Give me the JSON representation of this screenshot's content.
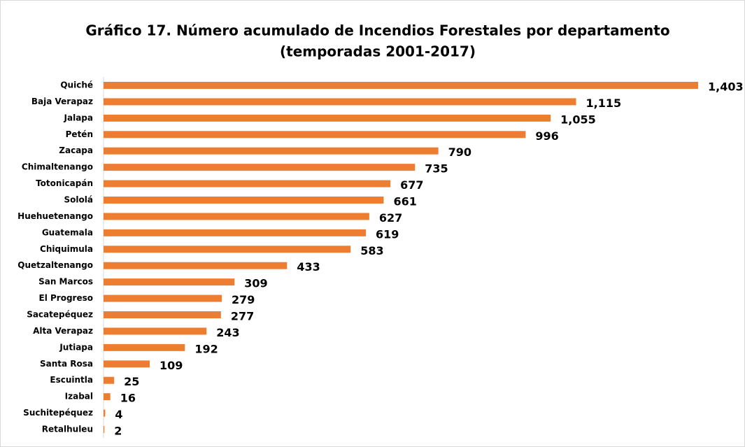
{
  "chart_data": {
    "type": "bar",
    "orientation": "horizontal",
    "title": [
      "Gráfico 17. Número acumulado de Incendios Forestales por departamento",
      "(temporadas 2001-2017)"
    ],
    "categories": [
      "Quiché",
      "Baja Verapaz",
      "Jalapa",
      "Petén",
      "Zacapa",
      "Chimaltenango",
      "Totonicapán",
      "Sololá",
      "Huehuetenango",
      "Guatemala",
      "Chiquimula",
      "Quetzaltenango",
      "San Marcos",
      "El Progreso",
      "Sacatepéquez",
      "Alta Verapaz",
      "Jutiapa",
      "Santa Rosa",
      "Escuintla",
      "Izabal",
      "Suchitepéquez",
      "Retalhuleu"
    ],
    "values": [
      1403,
      1115,
      1055,
      996,
      790,
      735,
      677,
      661,
      627,
      619,
      583,
      433,
      309,
      279,
      277,
      243,
      192,
      109,
      25,
      16,
      4,
      2
    ],
    "value_labels": [
      "1,403",
      "1,115",
      "1,055",
      "996",
      "790",
      "735",
      "677",
      "661",
      "627",
      "619",
      "583",
      "433",
      "309",
      "279",
      "277",
      "243",
      "192",
      "109",
      "25",
      "16",
      "4",
      "2"
    ],
    "color": "#ed7d31"
  }
}
